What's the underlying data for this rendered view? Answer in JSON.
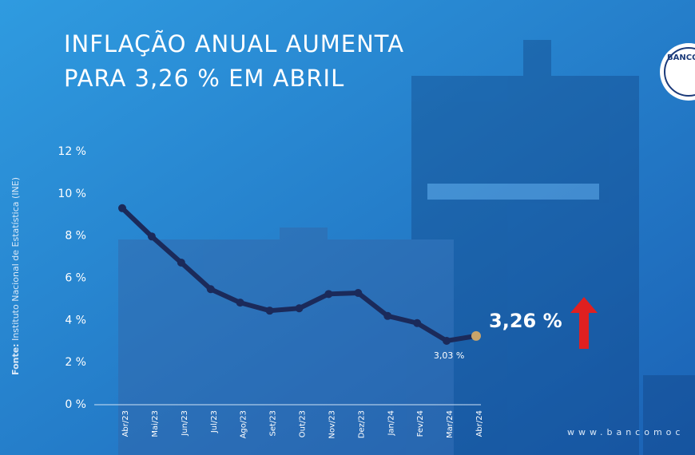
{
  "chart_data": {
    "type": "line",
    "title": [
      "INFLAÇÃO ANUAL AUMENTA",
      "PARA 3,26 % EM ABRIL"
    ],
    "categories": [
      "Abr/23",
      "Mai/23",
      "Jun/23",
      "Jul/23",
      "Ago/23",
      "Set/23",
      "Out/23",
      "Nov/23",
      "Dez/23",
      "Jan/24",
      "Fev/24",
      "Mar/24",
      "Abr/24"
    ],
    "values": [
      9.32,
      7.98,
      6.74,
      5.48,
      4.84,
      4.46,
      4.57,
      5.25,
      5.3,
      4.21,
      3.87,
      3.03,
      3.26
    ],
    "value_labels": [
      null,
      null,
      null,
      null,
      null,
      null,
      null,
      null,
      null,
      null,
      null,
      "3,03 %",
      "3,26 %"
    ],
    "color": "#1b2a5a",
    "highlight_color": "#c9a46a",
    "trend_color": "#e02020",
    "ylim": [
      0,
      12
    ],
    "yticks": [
      {
        "value": 0,
        "label": "0 %"
      },
      {
        "value": 2,
        "label": "2 %"
      },
      {
        "value": 4,
        "label": "4 %"
      },
      {
        "value": 6,
        "label": "6 %"
      },
      {
        "value": 8,
        "label": "8 %"
      },
      {
        "value": 10,
        "label": "10 %"
      },
      {
        "value": 12,
        "label": "12 %"
      }
    ],
    "source_label": "Fonte:",
    "source": "Instituto Nacional de Estatística (INE)",
    "website": "www.bancomoc",
    "logo_text": "BANCO"
  }
}
